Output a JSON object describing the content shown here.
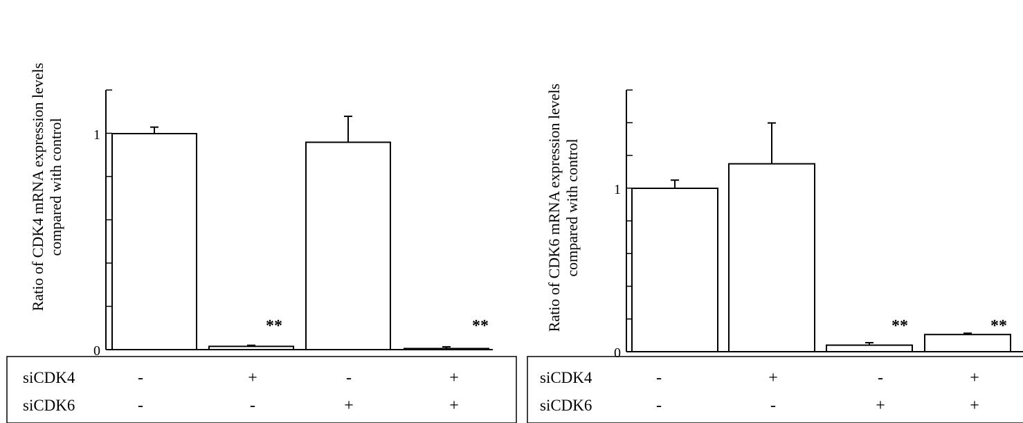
{
  "chart_data": [
    {
      "type": "bar",
      "ylabel": [
        "Ratio of CDK4 mRNA expression levels",
        "compared with control"
      ],
      "yticks": [
        "0",
        "1"
      ],
      "ylim": [
        0,
        1.2
      ],
      "values": [
        1.0,
        0.015,
        0.96,
        0.005
      ],
      "errors": [
        0.03,
        0.005,
        0.12,
        0.008
      ],
      "significance": [
        "",
        "**",
        "",
        "**"
      ],
      "rows": [
        {
          "label": "siCDK4",
          "marks": [
            "-",
            "+",
            "-",
            "+"
          ]
        },
        {
          "label": "siCDK6",
          "marks": [
            "-",
            "-",
            "+",
            "+"
          ]
        }
      ]
    },
    {
      "type": "bar",
      "ylabel": [
        "Ratio of CDK6 mRNA expression levels",
        "compared with control"
      ],
      "yticks": [
        "0",
        "1"
      ],
      "ylim": [
        0,
        1.6
      ],
      "values": [
        1.0,
        1.15,
        0.04,
        0.105
      ],
      "errors": [
        0.05,
        0.25,
        0.015,
        0.008
      ],
      "significance": [
        "",
        "",
        "**",
        "**"
      ],
      "rows": [
        {
          "label": "siCDK4",
          "marks": [
            "-",
            "+",
            "-",
            "+"
          ]
        },
        {
          "label": "siCDK6",
          "marks": [
            "-",
            "-",
            "+",
            "+"
          ]
        }
      ]
    }
  ]
}
